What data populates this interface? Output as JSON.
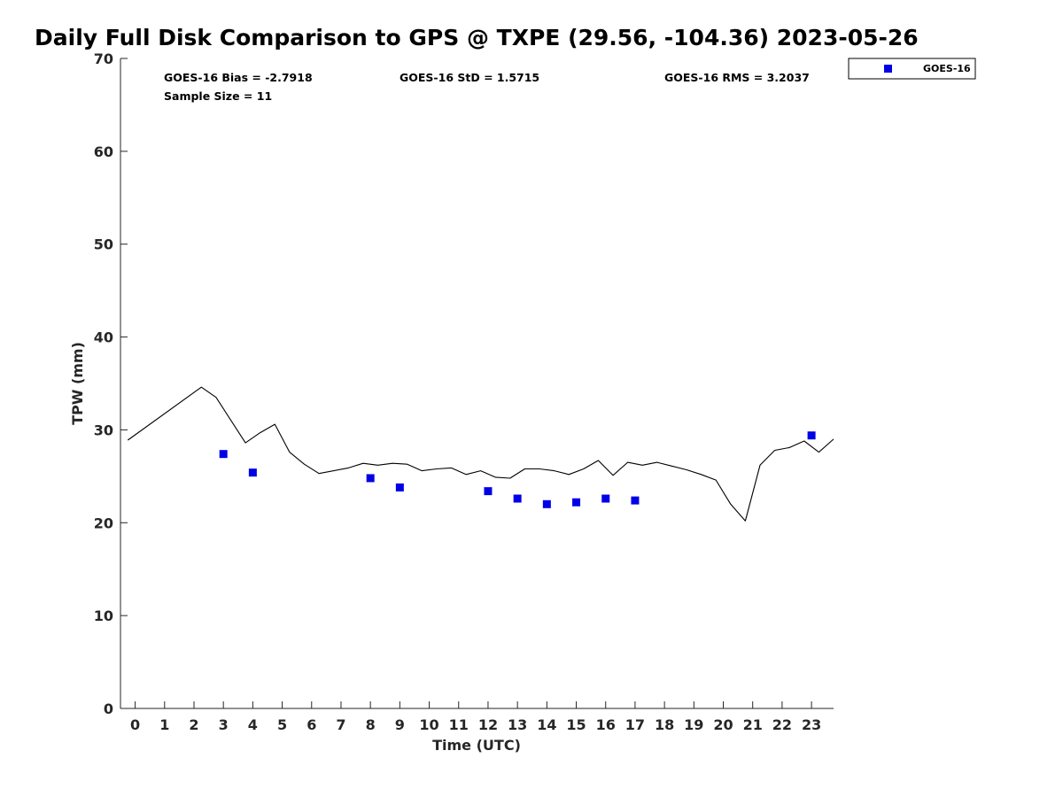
{
  "chart_data": {
    "type": "scatter",
    "title": "Daily Full Disk Comparison to GPS @ TXPE (29.56, -104.36) 2023-05-26",
    "xlabel": "Time (UTC)",
    "ylabel": "TPW (mm)",
    "xlim": [
      -0.5,
      23.75
    ],
    "ylim": [
      0,
      70
    ],
    "x_ticks": [
      0,
      1,
      2,
      3,
      4,
      5,
      6,
      7,
      8,
      9,
      10,
      11,
      12,
      13,
      14,
      15,
      16,
      17,
      18,
      19,
      20,
      21,
      22,
      23
    ],
    "x_tick_labels": [
      "0",
      "1",
      "2",
      "3",
      "4",
      "5",
      "6",
      "7",
      "8",
      "9",
      "10",
      "11",
      "12",
      "13",
      "14",
      "15",
      "16",
      "17",
      "18",
      "19",
      "20",
      "21",
      "22",
      "23"
    ],
    "y_ticks": [
      0,
      10,
      20,
      30,
      40,
      50,
      60,
      70
    ],
    "y_tick_labels": [
      "0",
      "10",
      "20",
      "30",
      "40",
      "50",
      "60",
      "70"
    ],
    "grid": false,
    "legend_position": "top-right, outside plot",
    "stats": [
      "GOES-16 Bias = -2.7918",
      "GOES-16 StD = 1.5715",
      "GOES-16 RMS = 3.2037",
      "Sample Size = 11"
    ],
    "series": [
      {
        "name": "GOES-16",
        "kind": "scatter",
        "color": "#0000e6",
        "marker": "square",
        "x": [
          3,
          4,
          8,
          9,
          12,
          13,
          14,
          15,
          16,
          17,
          23
        ],
        "y": [
          27.4,
          25.4,
          24.8,
          23.8,
          23.4,
          22.6,
          22.0,
          22.2,
          22.6,
          22.4,
          29.4
        ]
      },
      {
        "kind": "line",
        "color": "#000000",
        "x": [
          -0.25,
          2.25,
          2.75,
          3.75,
          4.25,
          4.75,
          5.25,
          5.75,
          6.25,
          7.25,
          7.75,
          8.25,
          8.75,
          9.25,
          9.75,
          10.25,
          10.75,
          11.25,
          11.75,
          12.25,
          12.75,
          13.25,
          13.75,
          14.25,
          14.75,
          15.25,
          15.75,
          16.25,
          16.75,
          17.25,
          17.75,
          18.25,
          18.75,
          19.25,
          19.75,
          20.25,
          20.75,
          21.25,
          21.75,
          22.25,
          22.75,
          23.25,
          23.75
        ],
        "y": [
          28.9,
          34.6,
          33.5,
          28.6,
          29.7,
          30.6,
          27.6,
          26.3,
          25.3,
          25.9,
          26.4,
          26.2,
          26.4,
          26.3,
          25.6,
          25.8,
          25.9,
          25.2,
          25.6,
          24.9,
          24.8,
          25.8,
          25.8,
          25.6,
          25.2,
          25.8,
          26.7,
          25.1,
          26.5,
          26.2,
          26.5,
          26.1,
          25.7,
          25.2,
          24.6,
          22.0,
          20.2,
          26.2,
          27.8,
          28.1,
          28.8,
          27.6,
          29.0
        ]
      }
    ]
  }
}
